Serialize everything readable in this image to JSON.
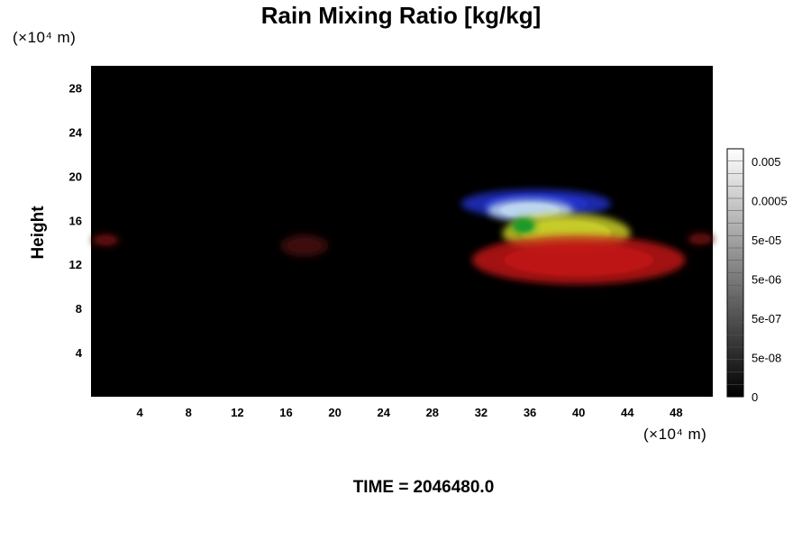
{
  "title": "Rain Mixing Ratio [kg/kg]",
  "time_label": "TIME =",
  "time_value": "2046480.0",
  "chart_data": {
    "type": "heatmap",
    "title": "Rain Mixing Ratio [kg/kg]",
    "xlabel": "",
    "ylabel": "Height",
    "x_unit": "(×10⁴ m)",
    "y_unit": "(×10⁴ m)",
    "xlim": [
      0,
      51
    ],
    "ylim": [
      0,
      30
    ],
    "x_ticks": [
      4,
      8,
      12,
      16,
      20,
      24,
      28,
      32,
      36,
      40,
      44,
      48
    ],
    "y_ticks": [
      4,
      8,
      12,
      16,
      20,
      24,
      28
    ],
    "background_color": "#000000",
    "colorbar": {
      "labels": [
        "0",
        "5e-08",
        "5e-07",
        "5e-06",
        "5e-05",
        "0.0005",
        "0.005"
      ],
      "gradient": [
        "#000000",
        "#ffffff"
      ]
    },
    "features": [
      {
        "color": "#2430c8",
        "x": [
          30.2,
          42.5
        ],
        "y": [
          16.2,
          18.8
        ],
        "cx": 36.5,
        "cy": 17.5
      },
      {
        "color": "#bfd8ef",
        "x": [
          33.0,
          40.0
        ],
        "y": [
          15.8,
          17.8
        ],
        "cx": 36.0,
        "cy": 16.9
      },
      {
        "color": "#c9cf2a",
        "x": [
          33.0,
          43.5
        ],
        "y": [
          12.9,
          16.6
        ],
        "cx": 39.0,
        "cy": 14.8
      },
      {
        "color": "#1a9a2c",
        "x": [
          34.5,
          36.5
        ],
        "y": [
          14.8,
          16.3
        ],
        "cx": 35.5,
        "cy": 15.5
      },
      {
        "color": "#c01818",
        "x": [
          29.5,
          47.0
        ],
        "y": [
          9.8,
          14.2
        ],
        "cx": 40.0,
        "cy": 12.4
      },
      {
        "color": "#5a1010",
        "x": [
          0.0,
          2.3
        ],
        "y": [
          13.6,
          14.8
        ],
        "cx": 1.2,
        "cy": 14.2
      },
      {
        "color": "#3c0c0c",
        "x": [
          15.5,
          19.5
        ],
        "y": [
          12.6,
          14.7
        ],
        "cx": 17.5,
        "cy": 13.7
      },
      {
        "color": "#5a1010",
        "x": [
          48.8,
          51.0
        ],
        "y": [
          13.6,
          14.8
        ],
        "cx": 50.0,
        "cy": 14.3
      }
    ]
  }
}
